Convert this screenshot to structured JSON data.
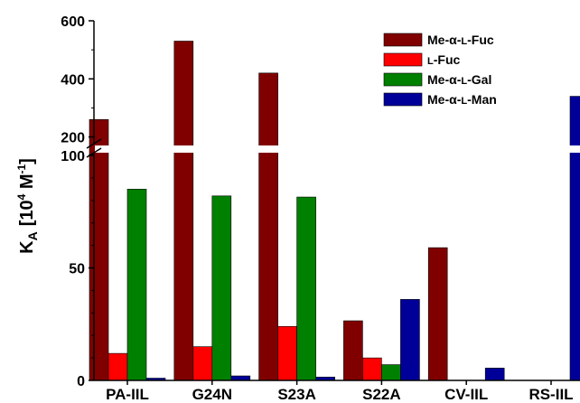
{
  "chart_data": {
    "type": "bar",
    "categories": [
      "PA-IIL",
      "G24N",
      "S23A",
      "S22A",
      "CV-IIL",
      "RS-IIL"
    ],
    "series": [
      {
        "name": "Me-α-L-Fuc",
        "color": "#800000",
        "values": [
          260,
          530,
          420,
          26.5,
          59,
          0
        ]
      },
      {
        "name": "L-Fuc",
        "color": "#ff0000",
        "values": [
          12,
          15,
          24,
          10,
          0,
          0
        ]
      },
      {
        "name": "Me-α-L-Gal",
        "color": "#008000",
        "values": [
          85,
          82,
          81.5,
          7,
          0,
          0
        ]
      },
      {
        "name": "Me-α-L-Man",
        "color": "#000099",
        "values": [
          1,
          2,
          1.5,
          36,
          5.5,
          340
        ]
      }
    ],
    "ylabel_main": "K",
    "ylabel_sub": "A",
    "ylabel_unit_prefix": "[10",
    "ylabel_unit_exp1": "4",
    "ylabel_unit_mid": " M",
    "ylabel_unit_exp2": "-1",
    "ylabel_unit_suffix": "]",
    "y_axis_break": true,
    "lower_segment": {
      "ylim": [
        0,
        100
      ],
      "ticks": [
        0,
        50,
        100
      ]
    },
    "upper_segment": {
      "ylim": [
        180,
        600
      ],
      "ticks": [
        200,
        400,
        600
      ]
    },
    "legend": "top-right",
    "grid": false
  }
}
